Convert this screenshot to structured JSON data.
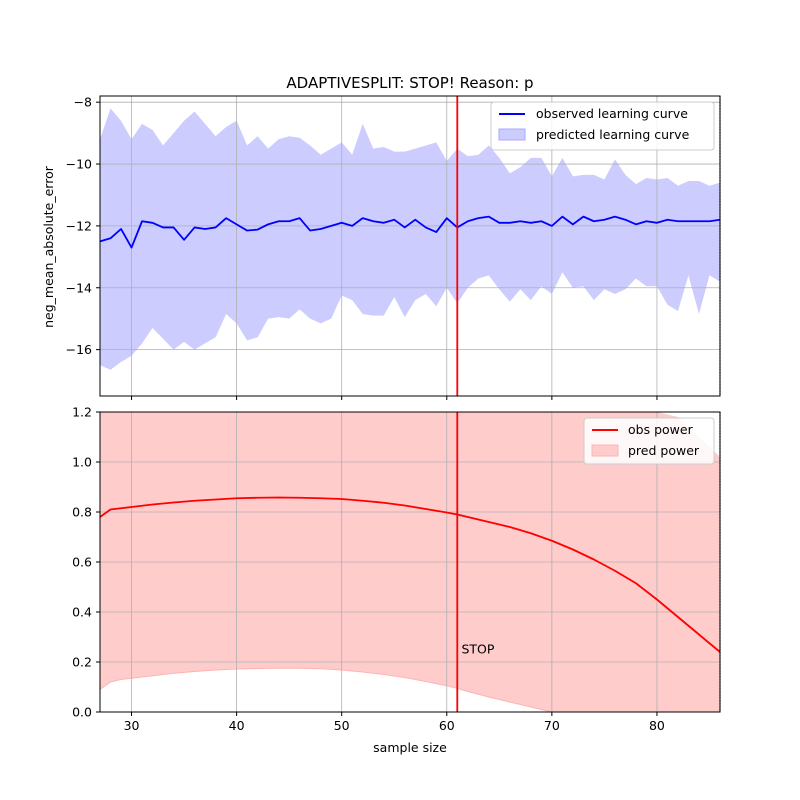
{
  "title": "ADAPTIVESPLIT: STOP!  Reason: p",
  "colors": {
    "observed_curve": "#0000ff",
    "predicted_band": "#ccccff",
    "power_curve": "#ff0000",
    "power_band": "#ffcccc",
    "power_band_edge": "#ffb3b3",
    "stop_line": "#ff0000",
    "grid": "#b0b0b0"
  },
  "stop_label": "STOP",
  "chart_data": [
    {
      "type": "line",
      "panel": "top",
      "xlabel": "",
      "ylabel": "neg_mean_absolute_error",
      "xlim": [
        27,
        86
      ],
      "ylim": [
        -17.5,
        -7.8
      ],
      "xticks": [
        30,
        40,
        50,
        60,
        70,
        80
      ],
      "yticks": [
        -16,
        -14,
        -12,
        -10,
        -8
      ],
      "ytick_labels": [
        "−16",
        "−14",
        "−12",
        "−10",
        "−8"
      ],
      "grid": true,
      "legend": "top-right",
      "stop_x": 61,
      "x": [
        27,
        28,
        29,
        30,
        31,
        32,
        33,
        34,
        35,
        36,
        37,
        38,
        39,
        40,
        41,
        42,
        43,
        44,
        45,
        46,
        47,
        48,
        49,
        50,
        51,
        52,
        53,
        54,
        55,
        56,
        57,
        58,
        59,
        60,
        61,
        62,
        63,
        64,
        65,
        66,
        67,
        68,
        69,
        70,
        71,
        72,
        73,
        74,
        75,
        76,
        77,
        78,
        79,
        80,
        81,
        82,
        83,
        84,
        85,
        86
      ],
      "series": [
        {
          "name": "observed learning curve",
          "kind": "line",
          "values": [
            -12.5,
            -12.4,
            -12.1,
            -12.7,
            -11.85,
            -11.9,
            -12.05,
            -12.05,
            -12.45,
            -12.05,
            -12.1,
            -12.05,
            -11.75,
            -11.95,
            -12.15,
            -12.12,
            -11.95,
            -11.85,
            -11.85,
            -11.75,
            -12.15,
            -12.1,
            -12.0,
            -11.9,
            -12.0,
            -11.75,
            -11.85,
            -11.9,
            -11.8,
            -12.05,
            -11.8,
            -12.05,
            -12.2,
            -11.75,
            -12.05,
            -11.85,
            -11.75,
            -11.7,
            -11.9,
            -11.9,
            -11.85,
            -11.9,
            -11.85,
            -12.0,
            -11.7,
            -11.95,
            -11.7,
            -11.85,
            -11.8,
            -11.7,
            -11.8,
            -11.95,
            -11.85,
            -11.9,
            -11.8,
            -11.85,
            -11.85,
            -11.85,
            -11.85,
            -11.8
          ]
        },
        {
          "name": "predicted learning curve",
          "kind": "band",
          "upper": [
            -9.2,
            -8.2,
            -8.6,
            -9.2,
            -8.7,
            -8.9,
            -9.4,
            -9.0,
            -8.6,
            -8.3,
            -8.7,
            -9.1,
            -8.8,
            -8.6,
            -9.4,
            -9.1,
            -9.5,
            -9.2,
            -9.1,
            -9.15,
            -9.4,
            -9.7,
            -9.5,
            -9.3,
            -9.7,
            -8.7,
            -9.5,
            -9.45,
            -9.6,
            -9.6,
            -9.5,
            -9.4,
            -9.3,
            -9.9,
            -9.5,
            -9.75,
            -9.7,
            -9.4,
            -9.8,
            -10.3,
            -10.1,
            -9.8,
            -9.8,
            -10.4,
            -9.8,
            -10.4,
            -10.35,
            -10.35,
            -10.5,
            -9.85,
            -10.35,
            -10.65,
            -10.45,
            -10.5,
            -10.45,
            -10.7,
            -10.55,
            -10.55,
            -10.7,
            -10.6
          ],
          "lower": [
            -16.5,
            -16.65,
            -16.4,
            -16.2,
            -15.8,
            -15.3,
            -15.65,
            -16.0,
            -15.75,
            -16.0,
            -15.8,
            -15.6,
            -14.85,
            -15.15,
            -15.7,
            -15.6,
            -15.0,
            -14.95,
            -15.0,
            -14.7,
            -15.0,
            -15.15,
            -15.0,
            -14.25,
            -14.4,
            -14.85,
            -14.9,
            -14.9,
            -14.3,
            -14.95,
            -14.4,
            -14.2,
            -14.6,
            -14.0,
            -14.5,
            -14.0,
            -13.7,
            -13.6,
            -14.05,
            -14.45,
            -14.05,
            -14.4,
            -13.95,
            -14.2,
            -13.5,
            -14.0,
            -13.95,
            -14.4,
            -14.05,
            -14.2,
            -14.05,
            -13.7,
            -13.95,
            -13.95,
            -14.55,
            -14.75,
            -13.6,
            -14.85,
            -13.6,
            -13.8
          ]
        }
      ]
    },
    {
      "type": "line",
      "panel": "bottom",
      "xlabel": "sample size",
      "ylabel": "",
      "xlim": [
        27,
        86
      ],
      "ylim": [
        0.0,
        1.2
      ],
      "xticks": [
        30,
        40,
        50,
        60,
        70,
        80
      ],
      "yticks": [
        0.0,
        0.2,
        0.4,
        0.6,
        0.8,
        1.0,
        1.2
      ],
      "ytick_labels": [
        "0.0",
        "0.2",
        "0.4",
        "0.6",
        "0.8",
        "1.0",
        "1.2"
      ],
      "grid": true,
      "legend": "top-right",
      "stop_x": 61,
      "annotation": {
        "text": "STOP",
        "x": 61.4,
        "y": 0.25
      },
      "x": [
        27,
        28,
        29,
        30,
        32,
        34,
        36,
        38,
        40,
        42,
        44,
        46,
        48,
        50,
        52,
        54,
        56,
        58,
        60,
        61,
        62,
        64,
        66,
        68,
        70,
        72,
        74,
        76,
        78,
        80,
        82,
        84,
        86
      ],
      "series": [
        {
          "name": "obs power",
          "kind": "line",
          "values": [
            0.78,
            0.81,
            0.815,
            0.82,
            0.83,
            0.838,
            0.845,
            0.85,
            0.855,
            0.857,
            0.858,
            0.857,
            0.855,
            0.852,
            0.845,
            0.837,
            0.826,
            0.812,
            0.798,
            0.79,
            0.78,
            0.76,
            0.74,
            0.715,
            0.685,
            0.65,
            0.61,
            0.565,
            0.515,
            0.45,
            0.38,
            0.31,
            0.24
          ]
        },
        {
          "name": "pred power",
          "kind": "band",
          "upper": [
            1.3,
            1.3,
            1.3,
            1.3,
            1.3,
            1.3,
            1.3,
            1.3,
            1.3,
            1.3,
            1.3,
            1.3,
            1.3,
            1.3,
            1.3,
            1.3,
            1.3,
            1.3,
            1.3,
            1.3,
            1.3,
            1.3,
            1.3,
            1.3,
            1.3,
            1.3,
            1.3,
            1.3,
            1.3,
            1.25,
            1.18,
            1.1,
            1.02
          ],
          "lower": [
            0.09,
            0.12,
            0.13,
            0.135,
            0.145,
            0.155,
            0.162,
            0.168,
            0.172,
            0.174,
            0.175,
            0.175,
            0.173,
            0.168,
            0.16,
            0.15,
            0.138,
            0.122,
            0.105,
            0.095,
            0.082,
            0.06,
            0.04,
            0.02,
            0.0,
            0.0,
            0.0,
            0.0,
            0.0,
            0.0,
            0.0,
            0.0,
            0.0
          ]
        }
      ]
    }
  ]
}
